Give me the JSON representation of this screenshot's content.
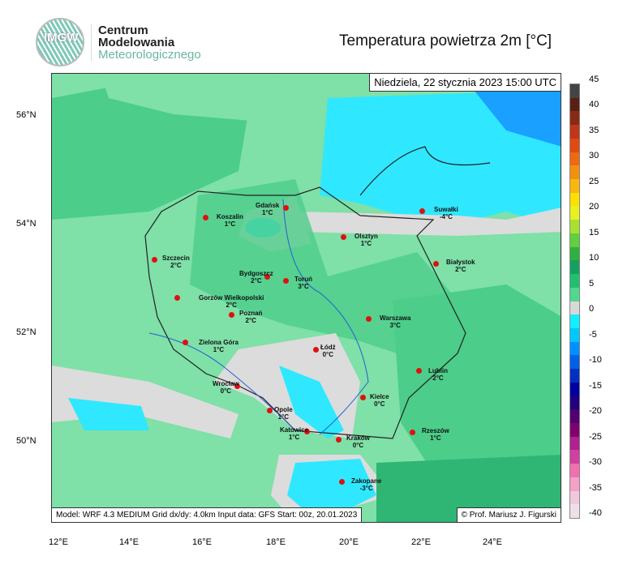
{
  "header": {
    "logo_text": "IMGW",
    "org_line1": "Centrum",
    "org_line2": "Modelowania",
    "org_line3": "Meteorologicznego",
    "title": "Temperatura powietrza 2m [°C]"
  },
  "map": {
    "datetime": "Niedziela, 22 stycznia 2023 15:00 UTC",
    "footer_left": "Model: WRF 4.3 MEDIUM   Grid dx/dy: 4.0km   Input data: GFS   Start: 00z, 20.01.2023",
    "footer_right": "© Prof. Mariusz J. Figurski",
    "lat_labels": [
      "56°N",
      "54°N",
      "52°N",
      "50°N"
    ],
    "lon_labels": [
      "12°E",
      "14°E",
      "16°E",
      "18°E",
      "20°E",
      "22°E",
      "24°E"
    ],
    "cities": [
      {
        "name": "Gdańsk",
        "temp": "1°C"
      },
      {
        "name": "Koszalin",
        "temp": "1°C"
      },
      {
        "name": "Olsztyn",
        "temp": "1°C"
      },
      {
        "name": "Suwałki",
        "temp": "-4°C"
      },
      {
        "name": "Szczecin",
        "temp": "2°C"
      },
      {
        "name": "Białystok",
        "temp": "2°C"
      },
      {
        "name": "Bydgoszcz",
        "temp": "2°C"
      },
      {
        "name": "Toruń",
        "temp": "3°C"
      },
      {
        "name": "Gorzów Wielkopolski",
        "temp": "2°C"
      },
      {
        "name": "Poznań",
        "temp": "2°C"
      },
      {
        "name": "Warszawa",
        "temp": "3°C"
      },
      {
        "name": "Zielona Góra",
        "temp": "1°C"
      },
      {
        "name": "Łódź",
        "temp": "0°C"
      },
      {
        "name": "Lublin",
        "temp": "2°C"
      },
      {
        "name": "Wrocław",
        "temp": "0°C"
      },
      {
        "name": "Kielce",
        "temp": "0°C"
      },
      {
        "name": "Opole",
        "temp": "1°C"
      },
      {
        "name": "Katowice",
        "temp": "1°C"
      },
      {
        "name": "Kraków",
        "temp": "0°C"
      },
      {
        "name": "Rzeszów",
        "temp": "1°C"
      },
      {
        "name": "Zakopane",
        "temp": "-3°C"
      }
    ],
    "colors": {
      "green_light": "#7fe0a8",
      "green_mid": "#4ccd8a",
      "green_dark": "#2fb574",
      "gray_zero": "#dcdcdc",
      "cyan": "#2fe8ff",
      "blue": "#1aa0ff",
      "city_dot": "#e01010"
    }
  },
  "colorbar": {
    "labels": [
      "45",
      "40",
      "35",
      "30",
      "25",
      "20",
      "15",
      "10",
      "5",
      "0",
      "-5",
      "-10",
      "-15",
      "-20",
      "-25",
      "-30",
      "-35",
      "-40"
    ],
    "colors": [
      "#444444",
      "#5a1f14",
      "#8a2a14",
      "#c0361a",
      "#e04a10",
      "#ec6a10",
      "#f29010",
      "#f8b810",
      "#ffe000",
      "#e8f020",
      "#a8e030",
      "#60d040",
      "#30b040",
      "#16a060",
      "#20c070",
      "#50d890",
      "#d8d8d8",
      "#10f0ff",
      "#00c8ff",
      "#0090ff",
      "#0060e8",
      "#0030c0",
      "#0000a0",
      "#200080",
      "#500070",
      "#800070",
      "#b02090",
      "#d040a0",
      "#f070b0",
      "#f4a0c8",
      "#f0c8dc",
      "#eee0ea"
    ]
  }
}
